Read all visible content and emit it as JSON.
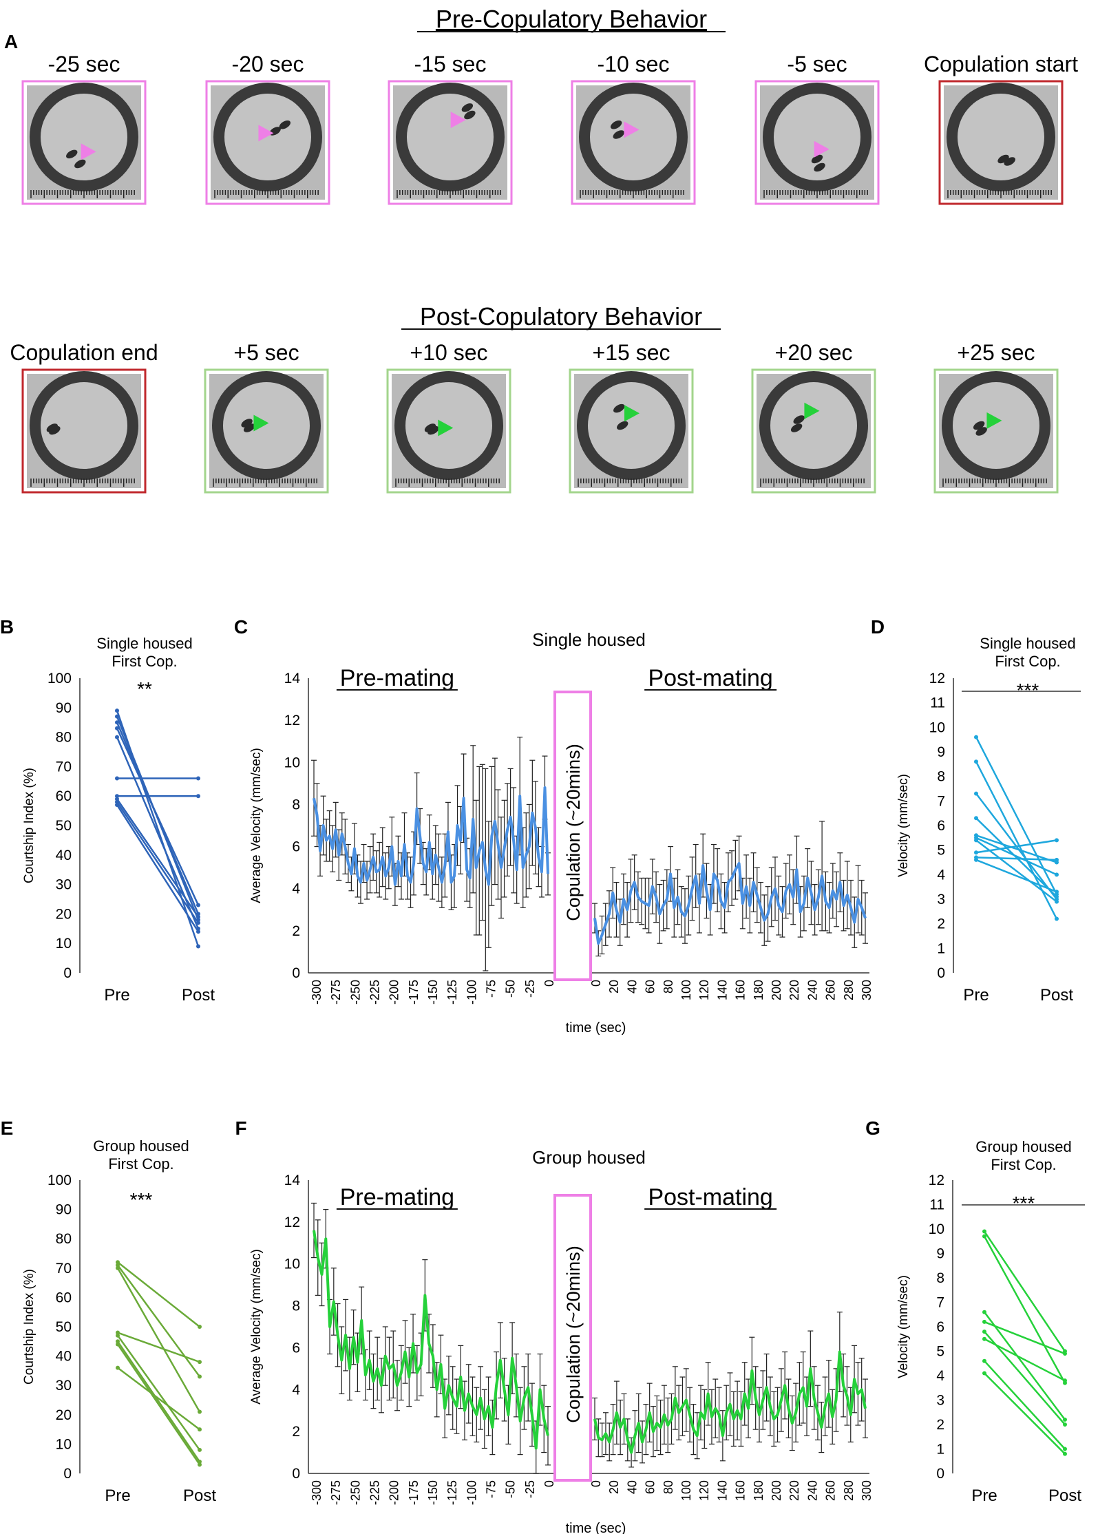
{
  "colors": {
    "pink": "#ee7fe6",
    "red": "#c0282d",
    "green_border": "#a3d58c",
    "blue_panel": "#2e64b8",
    "blue_line": "#4a90e2",
    "cyan": "#1ea7dd",
    "olive_green": "#6aaa38",
    "bright_green": "#25d13a",
    "magenta_box": "#ee7fe6"
  },
  "panel_a": {
    "label": "A",
    "pre_title": "Pre-Copulatory Behavior",
    "post_title": "Post-Copulatory Behavior",
    "pre_frames": [
      {
        "label": "-25 sec",
        "border": "pink",
        "arrow": "pink",
        "flies": [
          [
            -0.25,
            0.35
          ],
          [
            -0.08,
            0.55
          ]
        ],
        "arrow_pos": [
          0.08,
          0.3
        ]
      },
      {
        "label": "-20 sec",
        "border": "pink",
        "arrow": "pink",
        "flies": [
          [
            0.15,
            -0.12
          ],
          [
            0.35,
            -0.25
          ]
        ],
        "arrow_pos": [
          -0.05,
          -0.08
        ]
      },
      {
        "label": "-15 sec",
        "border": "pink",
        "arrow": "pink",
        "flies": [
          [
            0.35,
            -0.6
          ],
          [
            0.4,
            -0.45
          ]
        ],
        "arrow_pos": [
          0.15,
          -0.35
        ]
      },
      {
        "label": "-10 sec",
        "border": "pink",
        "arrow": "pink",
        "flies": [
          [
            -0.35,
            -0.25
          ],
          [
            -0.3,
            -0.05
          ]
        ],
        "arrow_pos": [
          -0.05,
          -0.15
        ]
      },
      {
        "label": "-5 sec",
        "border": "pink",
        "arrow": "pink",
        "flies": [
          [
            0.0,
            0.45
          ],
          [
            0.05,
            0.62
          ]
        ],
        "arrow_pos": [
          0.08,
          0.25
        ]
      },
      {
        "label": "Copulation start",
        "border": "red",
        "arrow": "none",
        "flies": [
          [
            0.05,
            0.45
          ],
          [
            0.18,
            0.5
          ]
        ],
        "arrow_pos": null
      }
    ],
    "post_frames": [
      {
        "label": "Copulation end",
        "border": "red",
        "arrow": "none",
        "flies": [
          [
            -0.65,
            0.05
          ],
          [
            -0.6,
            0.1
          ]
        ],
        "arrow_pos": null
      },
      {
        "label": "+5 sec",
        "border": "green_border",
        "arrow": "green",
        "flies": [
          [
            -0.4,
            -0.05
          ],
          [
            -0.35,
            0.05
          ]
        ],
        "arrow_pos": [
          -0.12,
          -0.05
        ]
      },
      {
        "label": "+10 sec",
        "border": "green_border",
        "arrow": "green",
        "flies": [
          [
            -0.38,
            0.05
          ],
          [
            -0.32,
            0.1
          ]
        ],
        "arrow_pos": [
          -0.08,
          0.05
        ]
      },
      {
        "label": "+15 sec",
        "border": "green_border",
        "arrow": "green",
        "flies": [
          [
            -0.25,
            -0.35
          ],
          [
            -0.18,
            0.0
          ]
        ],
        "arrow_pos": [
          0.0,
          -0.25
        ]
      },
      {
        "label": "+20 sec",
        "border": "green_border",
        "arrow": "green",
        "flies": [
          [
            -0.3,
            -0.12
          ],
          [
            -0.35,
            0.05
          ]
        ],
        "arrow_pos": [
          -0.05,
          -0.3
        ]
      },
      {
        "label": "+25 sec",
        "border": "green_border",
        "arrow": "green",
        "flies": [
          [
            -0.35,
            0.0
          ],
          [
            -0.3,
            0.12
          ]
        ],
        "arrow_pos": [
          -0.05,
          -0.1
        ]
      }
    ]
  },
  "chart_data": [
    {
      "id": "B",
      "type": "line",
      "label": "B",
      "title_lines": [
        "Single housed",
        "First Cop."
      ],
      "significance": "**",
      "ylabel": "Courtship Index (%)",
      "categories": [
        "Pre",
        "Post"
      ],
      "ylim": [
        0,
        100
      ],
      "yticks": [
        0,
        10,
        20,
        30,
        40,
        50,
        60,
        70,
        80,
        90,
        100
      ],
      "color": "blue_panel",
      "series": [
        [
          89,
          9
        ],
        [
          87,
          18
        ],
        [
          85,
          20
        ],
        [
          83,
          23
        ],
        [
          80,
          15
        ],
        [
          66,
          66
        ],
        [
          60,
          60
        ],
        [
          59,
          19
        ],
        [
          58,
          17
        ],
        [
          57,
          14
        ]
      ]
    },
    {
      "id": "C",
      "type": "line",
      "label": "C",
      "title": "Single housed",
      "ylabel": "Average Velocity (mm/sec)",
      "xlabel": "time (sec)",
      "ylim": [
        0,
        14
      ],
      "yticks": [
        0,
        2,
        4,
        6,
        8,
        10,
        12,
        14
      ],
      "pre_label": "Pre-mating",
      "post_label": "Post-mating",
      "box_label": "Copulation (~20mins)",
      "color": "blue_line",
      "pre_xticks": [
        "-300",
        "-275",
        "-250",
        "-225",
        "-200",
        "-175",
        "-150",
        "-125",
        "-100",
        "-75",
        "-50",
        "-25",
        "0"
      ],
      "post_xticks": [
        "0",
        "20",
        "40",
        "60",
        "80",
        "100",
        "120",
        "140",
        "160",
        "180",
        "200",
        "220",
        "240",
        "260",
        "280",
        "300"
      ],
      "pre_values": [
        8.3,
        7.5,
        5.8,
        7.0,
        6.3,
        6.5,
        5.9,
        6.8,
        5.6,
        6.6,
        6.0,
        5.2,
        4.7,
        5.9,
        4.6,
        4.3,
        5.2,
        4.4,
        4.9,
        5.5,
        4.8,
        4.9,
        5.5,
        4.6,
        5.0,
        6.0,
        4.2,
        5.3,
        4.6,
        6.1,
        4.6,
        4.3,
        5.2,
        7.8,
        6.5,
        5.2,
        4.8,
        6.2,
        4.7,
        5.6,
        5.0,
        4.3,
        5.1,
        6.7,
        4.3,
        4.6,
        7.0,
        6.3,
        8.3,
        4.9,
        4.5,
        7.3,
        5.0,
        5.8,
        6.2,
        4.9,
        4.2,
        6.5,
        7.2,
        6.1,
        5.0,
        5.9,
        6.8,
        7.4,
        6.3,
        4.9,
        8.4,
        5.0,
        5.6,
        6.0,
        7.6,
        6.9,
        5.5,
        4.8,
        8.8,
        4.7
      ],
      "pre_errors": [
        1.8,
        1.5,
        1.2,
        1.4,
        1.0,
        1.2,
        1.1,
        1.3,
        1.2,
        1.0,
        1.3,
        0.9,
        0.8,
        1.2,
        1.0,
        1.0,
        0.9,
        0.9,
        1.1,
        1.1,
        1.0,
        1.3,
        1.4,
        1.1,
        1.0,
        1.4,
        1.0,
        1.2,
        1.1,
        1.5,
        1.1,
        1.2,
        1.5,
        1.7,
        1.3,
        1.0,
        1.1,
        1.3,
        1.2,
        1.4,
        1.6,
        1.2,
        1.5,
        1.4,
        1.3,
        1.5,
        1.9,
        1.6,
        2.1,
        1.5,
        1.4,
        3.5,
        3.2,
        4.0,
        3.7,
        4.8,
        3.0,
        3.3,
        3.0,
        2.6,
        2.4,
        2.3,
        2.2,
        2.3,
        2.5,
        1.6,
        2.8,
        1.9,
        2.0,
        2.0,
        2.5,
        2.2,
        1.4,
        1.2,
        1.5,
        1.0
      ],
      "post_values": [
        2.6,
        1.4,
        1.8,
        2.3,
        2.8,
        3.8,
        3.0,
        2.4,
        3.5,
        3.0,
        3.9,
        4.3,
        3.6,
        3.4,
        3.3,
        3.2,
        4.1,
        3.6,
        2.8,
        3.2,
        3.5,
        4.7,
        3.1,
        3.6,
        2.9,
        2.7,
        3.2,
        4.0,
        4.6,
        3.3,
        5.1,
        3.9,
        3.0,
        4.7,
        4.4,
        3.4,
        3.1,
        4.3,
        4.5,
        4.9,
        5.2,
        3.3,
        4.1,
        3.2,
        4.3,
        3.7,
        3.1,
        2.5,
        2.8,
        3.6,
        4.0,
        3.2,
        2.9,
        3.9,
        4.2,
        3.6,
        4.9,
        2.9,
        3.3,
        4.5,
        3.8,
        3.0,
        3.6,
        4.6,
        3.4,
        3.1,
        3.9,
        3.5,
        4.3,
        3.2,
        3.7,
        3.1,
        2.4,
        3.5,
        3.1,
        2.6
      ],
      "post_errors": [
        0.7,
        0.6,
        0.9,
        1.0,
        1.1,
        1.2,
        1.3,
        1.1,
        1.2,
        1.3,
        1.5,
        1.3,
        1.2,
        1.1,
        1.2,
        1.3,
        1.3,
        1.2,
        1.4,
        1.2,
        1.4,
        1.3,
        1.4,
        1.3,
        1.2,
        1.3,
        1.4,
        1.5,
        1.5,
        1.4,
        1.5,
        1.3,
        1.2,
        1.4,
        1.5,
        1.3,
        1.2,
        1.4,
        1.3,
        1.4,
        1.3,
        1.2,
        1.5,
        1.3,
        1.4,
        1.3,
        1.2,
        1.2,
        1.3,
        1.4,
        1.5,
        1.4,
        1.2,
        1.3,
        1.4,
        1.3,
        1.6,
        1.2,
        1.3,
        1.4,
        1.5,
        1.2,
        1.3,
        2.6,
        1.4,
        1.2,
        1.3,
        1.3,
        1.4,
        1.2,
        1.6,
        1.3,
        1.2,
        1.6,
        1.3,
        1.2
      ]
    },
    {
      "id": "D",
      "type": "line",
      "label": "D",
      "title_lines": [
        "Single housed",
        "First Cop."
      ],
      "significance": "***",
      "ylabel": "Velocity (mm/sec)",
      "categories": [
        "Pre",
        "Post"
      ],
      "ylim": [
        0,
        12
      ],
      "yticks": [
        0,
        1,
        2,
        3,
        4,
        5,
        6,
        7,
        8,
        9,
        10,
        11,
        12
      ],
      "color": "cyan",
      "series": [
        [
          9.6,
          3.2
        ],
        [
          8.6,
          2.2
        ],
        [
          7.3,
          3.0
        ],
        [
          6.3,
          3.1
        ],
        [
          5.6,
          4.5
        ],
        [
          5.5,
          4.0
        ],
        [
          5.4,
          2.9
        ],
        [
          4.9,
          5.4
        ],
        [
          4.7,
          4.6
        ],
        [
          4.6,
          3.3
        ]
      ]
    },
    {
      "id": "E",
      "type": "line",
      "label": "E",
      "title_lines": [
        "Group housed",
        "First Cop."
      ],
      "significance": "***",
      "ylabel": "Courtship Index (%)",
      "categories": [
        "Pre",
        "Post"
      ],
      "ylim": [
        0,
        100
      ],
      "yticks": [
        0,
        10,
        20,
        30,
        40,
        50,
        60,
        70,
        80,
        90,
        100
      ],
      "color": "olive_green",
      "series": [
        [
          72,
          50
        ],
        [
          71,
          33
        ],
        [
          70,
          21
        ],
        [
          48,
          38
        ],
        [
          47,
          8
        ],
        [
          45,
          4
        ],
        [
          44,
          3
        ],
        [
          36,
          15
        ]
      ]
    },
    {
      "id": "F",
      "type": "line",
      "label": "F",
      "title": "Group housed",
      "ylabel": "Average Velocity (mm/sec)",
      "xlabel": "time (sec)",
      "ylim": [
        0,
        14
      ],
      "yticks": [
        0,
        2,
        4,
        6,
        8,
        10,
        12,
        14
      ],
      "pre_label": "Pre-mating",
      "post_label": "Post-mating",
      "box_label": "Copulation (~20mins)",
      "color": "bright_green",
      "pre_xticks": [
        "-300",
        "-275",
        "-250",
        "-225",
        "-200",
        "-175",
        "-150",
        "-125",
        "-100",
        "-75",
        "-50",
        "-25",
        "0"
      ],
      "post_xticks": [
        "0",
        "20",
        "40",
        "60",
        "80",
        "100",
        "120",
        "140",
        "160",
        "180",
        "200",
        "220",
        "240",
        "260",
        "280",
        "300"
      ],
      "pre_values": [
        11.6,
        10.3,
        9.5,
        11.2,
        7.0,
        8.2,
        6.6,
        5.4,
        6.6,
        5.0,
        6.5,
        5.3,
        7.3,
        4.7,
        5.4,
        4.4,
        5.0,
        4.2,
        5.6,
        5.0,
        5.2,
        4.2,
        4.8,
        5.8,
        4.6,
        6.2,
        4.8,
        5.2,
        8.5,
        6.2,
        5.6,
        4.0,
        5.2,
        3.1,
        4.2,
        3.6,
        3.2,
        4.6,
        3.0,
        3.8,
        3.2,
        2.8,
        3.6,
        2.6,
        3.2,
        2.2,
        4.2,
        5.4,
        4.0,
        2.8,
        5.5,
        4.2,
        2.5,
        3.6,
        4.1,
        2.8,
        1.2,
        4.0,
        2.6,
        1.8
      ],
      "pre_errors": [
        1.3,
        1.8,
        1.5,
        1.4,
        1.3,
        1.6,
        1.5,
        1.6,
        1.7,
        1.5,
        1.3,
        1.4,
        1.6,
        1.2,
        1.4,
        1.3,
        1.5,
        1.3,
        1.4,
        1.5,
        1.6,
        1.2,
        1.3,
        1.5,
        1.4,
        1.4,
        1.3,
        1.5,
        1.7,
        1.4,
        1.5,
        1.3,
        1.4,
        1.4,
        1.4,
        1.5,
        1.3,
        1.5,
        1.4,
        1.4,
        1.4,
        1.3,
        1.5,
        1.4,
        1.4,
        1.3,
        1.6,
        1.8,
        1.5,
        1.4,
        1.7,
        1.5,
        1.6,
        1.5,
        1.6,
        1.5,
        1.3,
        1.7,
        1.6,
        1.4
      ],
      "post_values": [
        2.6,
        1.7,
        1.6,
        1.9,
        1.5,
        2.1,
        2.9,
        2.2,
        2.6,
        1.6,
        1.0,
        1.8,
        2.4,
        1.5,
        2.1,
        2.9,
        2.0,
        2.4,
        2.2,
        2.8,
        2.3,
        2.6,
        3.6,
        2.9,
        3.2,
        3.5,
        2.8,
        2.1,
        1.8,
        2.9,
        2.6,
        3.8,
        2.7,
        3.1,
        2.8,
        1.8,
        2.9,
        3.3,
        2.6,
        3.0,
        2.6,
        3.8,
        3.1,
        4.9,
        3.6,
        2.8,
        3.5,
        4.1,
        3.2,
        2.6,
        2.8,
        3.5,
        4.2,
        3.1,
        2.4,
        2.9,
        3.8,
        4.1,
        3.2,
        5.0,
        3.6,
        2.9,
        2.2,
        3.2,
        3.8,
        2.7,
        3.5,
        5.8,
        4.2,
        3.7,
        2.8,
        4.5,
        3.8,
        4.0,
        3.1
      ],
      "post_errors": [
        1.0,
        0.9,
        0.8,
        1.0,
        0.9,
        1.2,
        1.5,
        1.3,
        1.2,
        1.0,
        0.7,
        1.2,
        1.4,
        1.0,
        1.2,
        1.4,
        1.2,
        1.3,
        1.3,
        1.4,
        1.3,
        1.2,
        1.5,
        1.3,
        1.4,
        1.5,
        1.3,
        1.2,
        1.1,
        1.3,
        1.4,
        1.5,
        1.3,
        1.4,
        1.3,
        1.2,
        1.3,
        1.5,
        1.3,
        1.4,
        1.3,
        1.5,
        1.4,
        1.6,
        1.5,
        1.3,
        1.4,
        1.6,
        1.4,
        1.3,
        1.3,
        1.5,
        1.6,
        1.4,
        1.3,
        1.4,
        1.5,
        1.7,
        1.4,
        1.8,
        1.5,
        1.3,
        1.2,
        1.4,
        1.6,
        1.3,
        1.5,
        1.9,
        1.5,
        1.4,
        1.3,
        1.6,
        1.5,
        1.5,
        1.4
      ]
    },
    {
      "id": "G",
      "type": "line",
      "label": "G",
      "title_lines": [
        "Group housed",
        "First Cop."
      ],
      "significance": "***",
      "ylabel": "Velocity (mm/sec)",
      "categories": [
        "Pre",
        "Post"
      ],
      "ylim": [
        0,
        12
      ],
      "yticks": [
        0,
        1,
        2,
        3,
        4,
        5,
        6,
        7,
        8,
        9,
        10,
        11,
        12
      ],
      "color": "bright_green",
      "series": [
        [
          9.9,
          5.0
        ],
        [
          9.7,
          3.7
        ],
        [
          6.6,
          2.2
        ],
        [
          6.2,
          4.9
        ],
        [
          5.8,
          2.0
        ],
        [
          5.5,
          3.8
        ],
        [
          4.6,
          1.0
        ],
        [
          4.1,
          0.8
        ]
      ]
    }
  ]
}
